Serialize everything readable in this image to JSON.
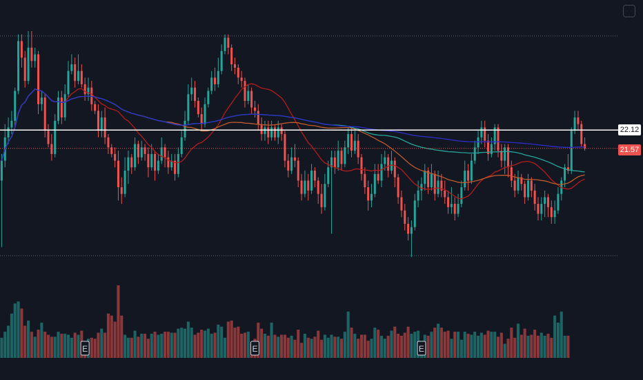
{
  "chart_data": {
    "type": "candlestick",
    "title": "",
    "price_labels": {
      "level_line": "22.12",
      "last_price": "21.57"
    },
    "y_range": [
      18.3,
      25.1
    ],
    "colors": {
      "background": "#131722",
      "up": "#26a69a",
      "down": "#ef5350",
      "ma_fast": "#b71c1c",
      "ma_mid": "#bf5b2c",
      "ma_slow": "#26a69a",
      "ma_long": "#2d2dc8",
      "level_line": "#ffffff",
      "last_price_line": "#ef5350"
    },
    "earnings_markers": {
      "label": "E",
      "bar_indices": [
        25,
        76,
        126
      ]
    },
    "candles": [
      {
        "o": 20.6,
        "c": 21.2,
        "h": 21.4,
        "l": 18.6
      },
      {
        "o": 21.2,
        "c": 21.9,
        "h": 22.3,
        "l": 21.0
      },
      {
        "o": 21.9,
        "c": 22.2,
        "h": 22.5,
        "l": 21.7
      },
      {
        "o": 22.2,
        "c": 22.4,
        "h": 22.7,
        "l": 22.0
      },
      {
        "o": 22.4,
        "c": 23.3,
        "h": 23.4,
        "l": 22.2
      },
      {
        "o": 23.3,
        "c": 24.8,
        "h": 25.0,
        "l": 23.2
      },
      {
        "o": 24.8,
        "c": 24.3,
        "h": 25.0,
        "l": 24.0
      },
      {
        "o": 24.3,
        "c": 23.6,
        "h": 24.5,
        "l": 23.4
      },
      {
        "o": 23.6,
        "c": 24.6,
        "h": 25.1,
        "l": 23.5
      },
      {
        "o": 24.6,
        "c": 24.2,
        "h": 25.1,
        "l": 24.0
      },
      {
        "o": 24.2,
        "c": 24.4,
        "h": 24.6,
        "l": 24.0
      },
      {
        "o": 24.4,
        "c": 22.9,
        "h": 24.5,
        "l": 22.6
      },
      {
        "o": 22.9,
        "c": 23.1,
        "h": 23.3,
        "l": 22.7
      },
      {
        "o": 23.1,
        "c": 22.1,
        "h": 23.2,
        "l": 21.9
      },
      {
        "o": 22.1,
        "c": 21.7,
        "h": 22.3,
        "l": 21.6
      },
      {
        "o": 21.7,
        "c": 21.4,
        "h": 22.0,
        "l": 21.2
      },
      {
        "o": 21.4,
        "c": 22.4,
        "h": 22.6,
        "l": 21.3
      },
      {
        "o": 22.4,
        "c": 23.1,
        "h": 23.3,
        "l": 22.3
      },
      {
        "o": 23.1,
        "c": 22.5,
        "h": 23.3,
        "l": 22.3
      },
      {
        "o": 22.5,
        "c": 23.2,
        "h": 23.5,
        "l": 22.4
      },
      {
        "o": 23.2,
        "c": 23.9,
        "h": 24.2,
        "l": 23.1
      },
      {
        "o": 23.9,
        "c": 24.1,
        "h": 24.4,
        "l": 23.8
      },
      {
        "o": 24.1,
        "c": 23.6,
        "h": 24.3,
        "l": 23.4
      },
      {
        "o": 23.6,
        "c": 23.9,
        "h": 24.4,
        "l": 23.5
      },
      {
        "o": 23.9,
        "c": 23.5,
        "h": 24.1,
        "l": 23.4
      },
      {
        "o": 23.5,
        "c": 23.2,
        "h": 23.7,
        "l": 23.0
      },
      {
        "o": 23.2,
        "c": 23.4,
        "h": 23.7,
        "l": 23.0
      },
      {
        "o": 23.4,
        "c": 22.9,
        "h": 23.6,
        "l": 22.7
      },
      {
        "o": 22.9,
        "c": 22.7,
        "h": 23.0,
        "l": 22.6
      },
      {
        "o": 22.7,
        "c": 22.1,
        "h": 22.9,
        "l": 21.9
      },
      {
        "o": 22.1,
        "c": 22.5,
        "h": 22.7,
        "l": 21.9
      },
      {
        "o": 22.5,
        "c": 21.9,
        "h": 22.8,
        "l": 21.7
      },
      {
        "o": 21.9,
        "c": 21.6,
        "h": 22.0,
        "l": 21.4
      },
      {
        "o": 21.6,
        "c": 21.4,
        "h": 21.7,
        "l": 21.3
      },
      {
        "o": 21.4,
        "c": 21.2,
        "h": 21.6,
        "l": 21.0
      },
      {
        "o": 21.2,
        "c": 20.4,
        "h": 21.5,
        "l": 20.0
      },
      {
        "o": 20.4,
        "c": 20.2,
        "h": 20.7,
        "l": 19.9
      },
      {
        "o": 20.2,
        "c": 20.9,
        "h": 21.3,
        "l": 20.1
      },
      {
        "o": 20.9,
        "c": 21.3,
        "h": 21.5,
        "l": 20.5
      },
      {
        "o": 21.3,
        "c": 21.0,
        "h": 21.4,
        "l": 20.8
      },
      {
        "o": 21.0,
        "c": 21.7,
        "h": 21.9,
        "l": 20.9
      },
      {
        "o": 21.7,
        "c": 21.3,
        "h": 21.8,
        "l": 21.1
      },
      {
        "o": 21.3,
        "c": 21.6,
        "h": 21.8,
        "l": 21.2
      },
      {
        "o": 21.6,
        "c": 21.4,
        "h": 21.7,
        "l": 21.2
      },
      {
        "o": 21.4,
        "c": 21.0,
        "h": 21.6,
        "l": 20.7
      },
      {
        "o": 21.0,
        "c": 21.4,
        "h": 21.7,
        "l": 20.9
      },
      {
        "o": 21.4,
        "c": 20.9,
        "h": 21.5,
        "l": 20.6
      },
      {
        "o": 20.9,
        "c": 21.2,
        "h": 21.4,
        "l": 20.8
      },
      {
        "o": 21.2,
        "c": 21.6,
        "h": 21.9,
        "l": 21.1
      },
      {
        "o": 21.6,
        "c": 21.3,
        "h": 21.7,
        "l": 21.0
      },
      {
        "o": 21.3,
        "c": 21.0,
        "h": 21.5,
        "l": 20.8
      },
      {
        "o": 21.0,
        "c": 21.2,
        "h": 21.4,
        "l": 20.9
      },
      {
        "o": 21.2,
        "c": 20.8,
        "h": 21.4,
        "l": 20.6
      },
      {
        "o": 20.8,
        "c": 21.4,
        "h": 21.6,
        "l": 20.7
      },
      {
        "o": 21.4,
        "c": 21.9,
        "h": 22.1,
        "l": 21.3
      },
      {
        "o": 21.9,
        "c": 22.4,
        "h": 22.7,
        "l": 21.8
      },
      {
        "o": 22.4,
        "c": 23.2,
        "h": 23.5,
        "l": 22.3
      },
      {
        "o": 23.2,
        "c": 23.4,
        "h": 23.7,
        "l": 23.0
      },
      {
        "o": 23.4,
        "c": 23.0,
        "h": 23.6,
        "l": 22.8
      },
      {
        "o": 23.0,
        "c": 22.6,
        "h": 23.1,
        "l": 22.5
      },
      {
        "o": 22.6,
        "c": 22.3,
        "h": 22.8,
        "l": 22.1
      },
      {
        "o": 22.3,
        "c": 22.9,
        "h": 23.1,
        "l": 22.2
      },
      {
        "o": 22.9,
        "c": 23.3,
        "h": 23.4,
        "l": 22.8
      },
      {
        "o": 23.3,
        "c": 23.7,
        "h": 23.9,
        "l": 23.2
      },
      {
        "o": 23.7,
        "c": 23.5,
        "h": 24.0,
        "l": 23.3
      },
      {
        "o": 23.5,
        "c": 23.9,
        "h": 24.3,
        "l": 23.4
      },
      {
        "o": 23.9,
        "c": 24.5,
        "h": 24.7,
        "l": 23.8
      },
      {
        "o": 24.5,
        "c": 24.9,
        "h": 25.0,
        "l": 24.4
      },
      {
        "o": 24.9,
        "c": 24.6,
        "h": 25.0,
        "l": 24.4
      },
      {
        "o": 24.6,
        "c": 24.1,
        "h": 24.7,
        "l": 23.9
      },
      {
        "o": 24.1,
        "c": 24.0,
        "h": 24.3,
        "l": 23.8
      },
      {
        "o": 24.0,
        "c": 23.7,
        "h": 24.1,
        "l": 23.5
      },
      {
        "o": 23.7,
        "c": 23.6,
        "h": 23.9,
        "l": 23.4
      },
      {
        "o": 23.6,
        "c": 23.0,
        "h": 23.7,
        "l": 22.8
      },
      {
        "o": 23.0,
        "c": 23.3,
        "h": 23.5,
        "l": 22.9
      },
      {
        "o": 23.3,
        "c": 22.8,
        "h": 23.4,
        "l": 22.6
      },
      {
        "o": 22.8,
        "c": 22.7,
        "h": 23.0,
        "l": 22.5
      },
      {
        "o": 22.7,
        "c": 22.3,
        "h": 22.9,
        "l": 22.1
      },
      {
        "o": 22.3,
        "c": 22.0,
        "h": 22.5,
        "l": 21.8
      },
      {
        "o": 22.0,
        "c": 22.2,
        "h": 22.4,
        "l": 21.8
      },
      {
        "o": 22.2,
        "c": 21.9,
        "h": 22.4,
        "l": 21.7
      },
      {
        "o": 21.9,
        "c": 22.2,
        "h": 22.4,
        "l": 21.8
      },
      {
        "o": 22.2,
        "c": 21.9,
        "h": 22.3,
        "l": 21.8
      },
      {
        "o": 21.9,
        "c": 22.2,
        "h": 22.4,
        "l": 21.7
      },
      {
        "o": 22.2,
        "c": 22.0,
        "h": 22.3,
        "l": 21.8
      },
      {
        "o": 22.0,
        "c": 21.2,
        "h": 22.1,
        "l": 21.0
      },
      {
        "o": 21.2,
        "c": 20.9,
        "h": 21.4,
        "l": 20.7
      },
      {
        "o": 20.9,
        "c": 21.3,
        "h": 21.6,
        "l": 20.8
      },
      {
        "o": 21.3,
        "c": 21.2,
        "h": 21.7,
        "l": 21.0
      },
      {
        "o": 21.2,
        "c": 20.6,
        "h": 21.3,
        "l": 20.4
      },
      {
        "o": 20.6,
        "c": 20.2,
        "h": 20.8,
        "l": 20.0
      },
      {
        "o": 20.2,
        "c": 20.6,
        "h": 20.9,
        "l": 20.1
      },
      {
        "o": 20.6,
        "c": 20.3,
        "h": 20.8,
        "l": 20.0
      },
      {
        "o": 20.3,
        "c": 20.9,
        "h": 21.1,
        "l": 20.2
      },
      {
        "o": 20.9,
        "c": 20.6,
        "h": 21.0,
        "l": 20.4
      },
      {
        "o": 20.6,
        "c": 20.2,
        "h": 20.7,
        "l": 19.9
      },
      {
        "o": 20.2,
        "c": 19.8,
        "h": 20.5,
        "l": 19.6
      },
      {
        "o": 19.8,
        "c": 20.5,
        "h": 20.8,
        "l": 19.7
      },
      {
        "o": 20.5,
        "c": 21.0,
        "h": 21.2,
        "l": 20.4
      },
      {
        "o": 21.0,
        "c": 21.3,
        "h": 21.5,
        "l": 19.0
      },
      {
        "o": 21.3,
        "c": 21.0,
        "h": 21.5,
        "l": 20.8
      },
      {
        "o": 21.0,
        "c": 21.5,
        "h": 21.8,
        "l": 20.9
      },
      {
        "o": 21.5,
        "c": 21.1,
        "h": 21.6,
        "l": 20.9
      },
      {
        "o": 21.1,
        "c": 21.6,
        "h": 21.8,
        "l": 21.0
      },
      {
        "o": 21.6,
        "c": 22.0,
        "h": 22.2,
        "l": 21.4
      },
      {
        "o": 22.0,
        "c": 21.5,
        "h": 22.2,
        "l": 21.3
      },
      {
        "o": 21.5,
        "c": 21.8,
        "h": 22.1,
        "l": 21.4
      },
      {
        "o": 21.8,
        "c": 21.3,
        "h": 22.0,
        "l": 21.1
      },
      {
        "o": 21.3,
        "c": 20.8,
        "h": 21.4,
        "l": 20.6
      },
      {
        "o": 20.8,
        "c": 20.4,
        "h": 21.0,
        "l": 20.2
      },
      {
        "o": 20.4,
        "c": 20.0,
        "h": 20.6,
        "l": 19.7
      },
      {
        "o": 20.0,
        "c": 20.2,
        "h": 20.5,
        "l": 19.8
      },
      {
        "o": 20.2,
        "c": 20.8,
        "h": 21.1,
        "l": 20.1
      },
      {
        "o": 20.8,
        "c": 20.6,
        "h": 21.1,
        "l": 20.5
      },
      {
        "o": 20.6,
        "c": 21.1,
        "h": 21.4,
        "l": 20.4
      },
      {
        "o": 21.1,
        "c": 21.3,
        "h": 21.5,
        "l": 20.9
      },
      {
        "o": 21.3,
        "c": 20.9,
        "h": 21.4,
        "l": 20.7
      },
      {
        "o": 20.9,
        "c": 21.2,
        "h": 21.5,
        "l": 20.8
      },
      {
        "o": 21.2,
        "c": 20.7,
        "h": 21.3,
        "l": 20.4
      },
      {
        "o": 20.7,
        "c": 20.1,
        "h": 20.8,
        "l": 19.9
      },
      {
        "o": 20.1,
        "c": 19.7,
        "h": 20.3,
        "l": 19.5
      },
      {
        "o": 19.7,
        "c": 19.3,
        "h": 19.9,
        "l": 19.1
      },
      {
        "o": 19.3,
        "c": 19.0,
        "h": 19.5,
        "l": 18.8
      },
      {
        "o": 19.0,
        "c": 19.2,
        "h": 19.4,
        "l": 18.3
      },
      {
        "o": 19.2,
        "c": 20.0,
        "h": 20.2,
        "l": 19.1
      },
      {
        "o": 20.0,
        "c": 20.3,
        "h": 20.6,
        "l": 19.8
      },
      {
        "o": 20.3,
        "c": 20.5,
        "h": 20.7,
        "l": 20.0
      },
      {
        "o": 20.5,
        "c": 20.9,
        "h": 21.1,
        "l": 20.3
      },
      {
        "o": 20.9,
        "c": 20.4,
        "h": 21.0,
        "l": 20.2
      },
      {
        "o": 20.4,
        "c": 20.8,
        "h": 21.1,
        "l": 20.3
      },
      {
        "o": 20.8,
        "c": 20.2,
        "h": 20.9,
        "l": 20.0
      },
      {
        "o": 20.2,
        "c": 20.6,
        "h": 20.9,
        "l": 20.1
      },
      {
        "o": 20.6,
        "c": 20.3,
        "h": 20.8,
        "l": 20.1
      },
      {
        "o": 20.3,
        "c": 20.1,
        "h": 20.6,
        "l": 19.9
      },
      {
        "o": 20.1,
        "c": 19.8,
        "h": 20.3,
        "l": 19.6
      },
      {
        "o": 19.8,
        "c": 19.9,
        "h": 20.4,
        "l": 19.6
      },
      {
        "o": 19.9,
        "c": 19.6,
        "h": 20.1,
        "l": 19.4
      },
      {
        "o": 19.6,
        "c": 19.9,
        "h": 20.2,
        "l": 19.5
      },
      {
        "o": 19.9,
        "c": 20.4,
        "h": 20.6,
        "l": 19.8
      },
      {
        "o": 20.4,
        "c": 20.9,
        "h": 21.2,
        "l": 20.3
      },
      {
        "o": 20.9,
        "c": 20.6,
        "h": 21.1,
        "l": 20.3
      },
      {
        "o": 20.6,
        "c": 21.2,
        "h": 21.4,
        "l": 20.5
      },
      {
        "o": 21.2,
        "c": 21.6,
        "h": 21.8,
        "l": 21.1
      },
      {
        "o": 21.6,
        "c": 21.9,
        "h": 22.1,
        "l": 21.4
      },
      {
        "o": 21.9,
        "c": 22.2,
        "h": 22.4,
        "l": 21.7
      },
      {
        "o": 22.2,
        "c": 21.8,
        "h": 22.4,
        "l": 21.6
      },
      {
        "o": 21.8,
        "c": 21.4,
        "h": 22.0,
        "l": 21.2
      },
      {
        "o": 21.4,
        "c": 21.7,
        "h": 21.9,
        "l": 21.3
      },
      {
        "o": 21.7,
        "c": 22.2,
        "h": 22.3,
        "l": 21.5
      },
      {
        "o": 22.2,
        "c": 21.5,
        "h": 22.3,
        "l": 21.3
      },
      {
        "o": 21.5,
        "c": 21.2,
        "h": 21.7,
        "l": 21.0
      },
      {
        "o": 21.2,
        "c": 21.6,
        "h": 21.7,
        "l": 20.8
      },
      {
        "o": 21.6,
        "c": 21.0,
        "h": 21.7,
        "l": 20.7
      },
      {
        "o": 21.0,
        "c": 20.6,
        "h": 21.2,
        "l": 20.4
      },
      {
        "o": 20.6,
        "c": 20.3,
        "h": 20.8,
        "l": 20.1
      },
      {
        "o": 20.3,
        "c": 20.7,
        "h": 20.9,
        "l": 20.2
      },
      {
        "o": 20.7,
        "c": 20.5,
        "h": 20.8,
        "l": 20.3
      },
      {
        "o": 20.5,
        "c": 20.1,
        "h": 20.6,
        "l": 19.9
      },
      {
        "o": 20.1,
        "c": 20.6,
        "h": 20.8,
        "l": 20.0
      },
      {
        "o": 20.6,
        "c": 20.3,
        "h": 20.7,
        "l": 20.1
      },
      {
        "o": 20.3,
        "c": 19.9,
        "h": 20.5,
        "l": 19.7
      },
      {
        "o": 19.9,
        "c": 19.6,
        "h": 20.1,
        "l": 19.4
      },
      {
        "o": 19.6,
        "c": 19.9,
        "h": 20.1,
        "l": 19.4
      },
      {
        "o": 19.9,
        "c": 20.1,
        "h": 20.3,
        "l": 19.5
      },
      {
        "o": 20.1,
        "c": 19.8,
        "h": 20.2,
        "l": 19.5
      },
      {
        "o": 19.8,
        "c": 19.5,
        "h": 20.0,
        "l": 19.3
      },
      {
        "o": 19.5,
        "c": 19.7,
        "h": 20.0,
        "l": 19.3
      },
      {
        "o": 19.7,
        "c": 20.2,
        "h": 20.4,
        "l": 19.6
      },
      {
        "o": 20.2,
        "c": 20.6,
        "h": 20.7,
        "l": 20.0
      },
      {
        "o": 20.6,
        "c": 21.0,
        "h": 21.1,
        "l": 20.4
      },
      {
        "o": 21.0,
        "c": 20.9,
        "h": 21.4,
        "l": 20.8
      },
      {
        "o": 20.9,
        "c": 22.1,
        "h": 22.2,
        "l": 20.8
      },
      {
        "o": 22.1,
        "c": 22.5,
        "h": 22.7,
        "l": 22.0
      },
      {
        "o": 22.5,
        "c": 22.3,
        "h": 22.7,
        "l": 22.1
      },
      {
        "o": 22.3,
        "c": 21.7,
        "h": 22.4,
        "l": 21.6
      },
      {
        "o": 21.7,
        "c": 21.57,
        "h": 21.9,
        "l": 21.5
      }
    ],
    "volume": [
      2.0,
      2.6,
      3.2,
      4.4,
      5.4,
      5.6,
      4.9,
      3.2,
      3.7,
      2.6,
      2.1,
      2.8,
      3.5,
      2.6,
      2.3,
      2.1,
      2.1,
      2.6,
      2.4,
      2.4,
      2.3,
      2.0,
      2.5,
      2.3,
      2.7,
      1.4,
      1.9,
      2.0,
      1.9,
      2.5,
      2.9,
      2.5,
      4.4,
      4.2,
      3.6,
      7.2,
      4.2,
      2.3,
      2.0,
      2.0,
      2.7,
      2.1,
      2.4,
      2.4,
      1.9,
      2.4,
      2.6,
      2.3,
      2.4,
      2.6,
      2.6,
      2.5,
      2.5,
      2.9,
      3.0,
      2.9,
      3.6,
      3.0,
      2.3,
      2.5,
      2.8,
      2.7,
      2.9,
      2.4,
      2.5,
      3.3,
      3.1,
      2.0,
      3.6,
      3.7,
      3.0,
      3.1,
      2.4,
      2.5,
      2.6,
      1.4,
      1.9,
      3.5,
      2.9,
      2.4,
      2.2,
      3.5,
      2.3,
      2.1,
      2.3,
      2.3,
      2.0,
      2.2,
      1.8,
      2.8,
      1.5,
      2.4,
      2.0,
      1.9,
      2.1,
      2.7,
      1.8,
      2.3,
      2.0,
      2.3,
      2.1,
      2.1,
      1.9,
      2.6,
      4.6,
      3.0,
      2.4,
      1.9,
      2.3,
      2.3,
      1.7,
      1.9,
      3.0,
      2.8,
      2.2,
      1.9,
      2.2,
      2.7,
      3.1,
      2.4,
      2.2,
      2.5,
      3.1,
      2.4,
      2.6,
      2.7,
      1.4,
      2.3,
      2.2,
      2.6,
      3.0,
      3.4,
      3.0,
      2.6,
      2.7,
      1.9,
      2.6,
      2.6,
      1.8,
      2.6,
      2.4,
      2.3,
      2.6,
      2.2,
      2.5,
      2.3,
      2.7,
      2.6,
      2.6,
      2.1,
      2.5,
      1.4,
      1.9,
      3.0,
      2.0,
      3.4,
      2.3,
      2.9,
      2.2,
      2.3,
      2.8,
      2.2,
      2.5,
      2.2,
      2.4,
      2.0,
      4.2,
      3.5,
      4.6,
      2.2,
      2.2
    ],
    "volume_max": 7.2
  }
}
